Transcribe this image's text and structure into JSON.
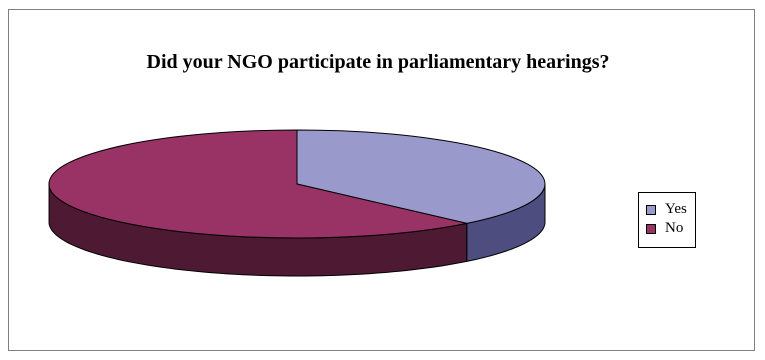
{
  "chart_data": {
    "type": "pie",
    "style": "3d",
    "title": "Did your NGO participate in parliamentary hearings?",
    "categories": [
      "Yes",
      "No"
    ],
    "values": [
      38,
      62
    ],
    "value_unit": "percent",
    "colors": {
      "Yes": "#9999cc",
      "No": "#993366"
    },
    "side_colors": {
      "Yes": "#4d4d80",
      "No": "#4d1933"
    },
    "legend": {
      "position": "right",
      "entries": [
        "Yes",
        "No"
      ]
    }
  }
}
